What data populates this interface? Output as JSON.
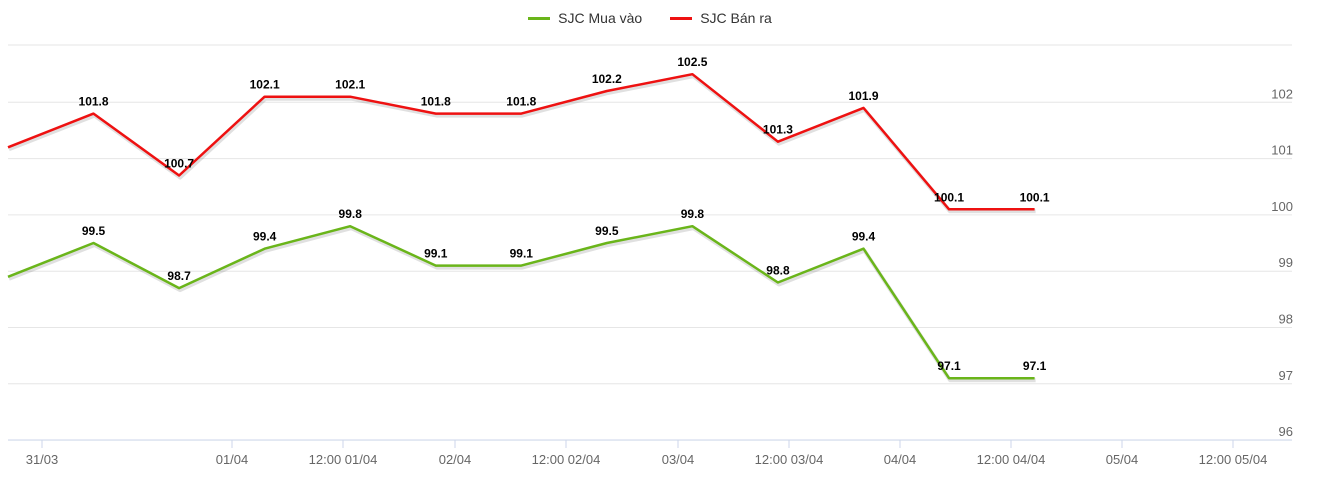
{
  "chart_data": {
    "type": "line",
    "x_ticks": [
      "31/03",
      "01/04",
      "12:00 01/04",
      "02/04",
      "12:00 02/04",
      "03/04",
      "12:00 03/04",
      "04/04",
      "12:00 04/04",
      "05/04",
      "12:00 05/04"
    ],
    "y_ticks": [
      "96",
      "97",
      "98",
      "99",
      "100",
      "101",
      "102"
    ],
    "ylim": [
      96,
      103
    ],
    "grid": true,
    "legend_position": "top-center",
    "series": [
      {
        "name": "SJC Mua vào",
        "color": "#6ab51a",
        "values": [
          98.9,
          99.5,
          98.7,
          99.4,
          99.8,
          99.1,
          99.1,
          99.5,
          99.8,
          98.8,
          99.4,
          97.1,
          97.1
        ],
        "labels": [
          "",
          "99.5",
          "98.7",
          "99.4",
          "99.8",
          "99.1",
          "99.1",
          "99.5",
          "99.8",
          "98.8",
          "99.4",
          "97.1",
          "97.1"
        ]
      },
      {
        "name": "SJC Bán ra",
        "color": "#ee1111",
        "values": [
          101.2,
          101.8,
          100.7,
          102.1,
          102.1,
          101.8,
          101.8,
          102.2,
          102.5,
          101.3,
          101.9,
          100.1,
          100.1
        ],
        "labels": [
          "",
          "101.8",
          "100.7",
          "102.1",
          "102.1",
          "101.8",
          "101.8",
          "102.2",
          "102.5",
          "101.3",
          "101.9",
          "100.1",
          "100.1"
        ]
      }
    ]
  }
}
